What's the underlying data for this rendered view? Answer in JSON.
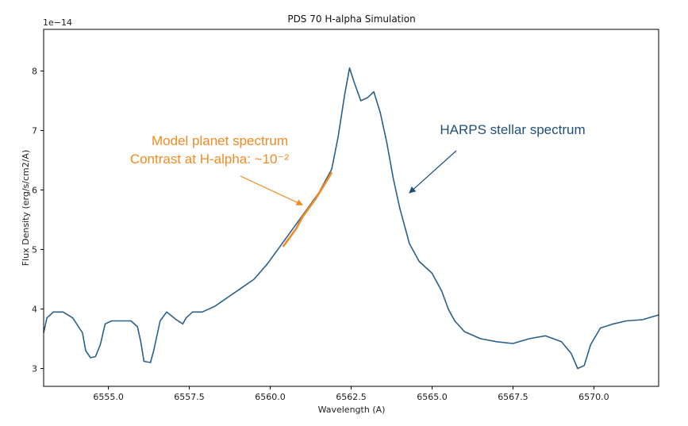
{
  "chart_data": {
    "type": "line",
    "title": "PDS 70 H-alpha Simulation",
    "xlabel": "Wavelength (A)",
    "ylabel": "Flux Density (erg/s/cm2/A)",
    "offset_label": "1e−14",
    "xlim": [
      6553.0,
      6572.0
    ],
    "ylim": [
      2.7,
      8.7
    ],
    "xticks": [
      6555.0,
      6557.5,
      6560.0,
      6562.5,
      6565.0,
      6567.5,
      6570.0
    ],
    "xtick_labels": [
      "6555.0",
      "6557.5",
      "6560.0",
      "6562.5",
      "6565.0",
      "6567.5",
      "6570.0"
    ],
    "yticks": [
      3,
      4,
      5,
      6,
      7,
      8
    ],
    "ytick_labels": [
      "3",
      "4",
      "5",
      "6",
      "7",
      "8"
    ],
    "series": [
      {
        "name": "Model planet spectrum",
        "color": "#f28a22",
        "x": [
          6560.4,
          6560.8,
          6561.0,
          6561.4,
          6561.8,
          6561.9
        ],
        "y": [
          5.05,
          5.35,
          5.55,
          5.85,
          6.2,
          6.3
        ]
      },
      {
        "name": "HARPS stellar spectrum",
        "color": "#2a5f8a",
        "x": [
          6553.0,
          6553.1,
          6553.3,
          6553.6,
          6553.9,
          6554.2,
          6554.3,
          6554.45,
          6554.6,
          6554.75,
          6554.9,
          6555.1,
          6555.4,
          6555.7,
          6555.9,
          6556.0,
          6556.1,
          6556.3,
          6556.4,
          6556.6,
          6556.8,
          6557.1,
          6557.3,
          6557.4,
          6557.6,
          6557.9,
          6558.3,
          6558.7,
          6559.1,
          6559.5,
          6559.9,
          6560.3,
          6560.7,
          6561.1,
          6561.5,
          6561.9,
          6562.1,
          6562.3,
          6562.45,
          6562.6,
          6562.8,
          6563.0,
          6563.2,
          6563.4,
          6563.6,
          6563.8,
          6564.0,
          6564.3,
          6564.6,
          6565.0,
          6565.3,
          6565.5,
          6565.7,
          6566.0,
          6566.5,
          6567.0,
          6567.5,
          6568.0,
          6568.5,
          6569.0,
          6569.3,
          6569.5,
          6569.7,
          6569.9,
          6570.2,
          6570.6,
          6571.0,
          6571.5,
          6572.0
        ],
        "y": [
          3.6,
          3.85,
          3.95,
          3.95,
          3.85,
          3.6,
          3.3,
          3.18,
          3.2,
          3.4,
          3.75,
          3.8,
          3.8,
          3.8,
          3.7,
          3.45,
          3.12,
          3.1,
          3.3,
          3.8,
          3.95,
          3.82,
          3.75,
          3.85,
          3.95,
          3.95,
          4.05,
          4.2,
          4.35,
          4.5,
          4.75,
          5.05,
          5.35,
          5.65,
          5.95,
          6.35,
          6.9,
          7.6,
          8.05,
          7.8,
          7.5,
          7.55,
          7.65,
          7.3,
          6.8,
          6.2,
          5.7,
          5.1,
          4.8,
          4.6,
          4.3,
          4.0,
          3.8,
          3.62,
          3.5,
          3.45,
          3.42,
          3.5,
          3.55,
          3.45,
          3.25,
          3.0,
          3.05,
          3.4,
          3.68,
          3.75,
          3.8,
          3.82,
          3.9
        ]
      }
    ],
    "annotations": [
      {
        "lines": [
          "Model planet spectrum",
          "Contrast at H-alpha: ~10⁻²"
        ],
        "color": "#f28a22",
        "target": [
          6561.0,
          5.75
        ]
      },
      {
        "lines": [
          "HARPS stellar spectrum"
        ],
        "color": "#1f4e79",
        "target": [
          6564.3,
          5.95
        ]
      }
    ],
    "grid": false,
    "legend": "none"
  }
}
